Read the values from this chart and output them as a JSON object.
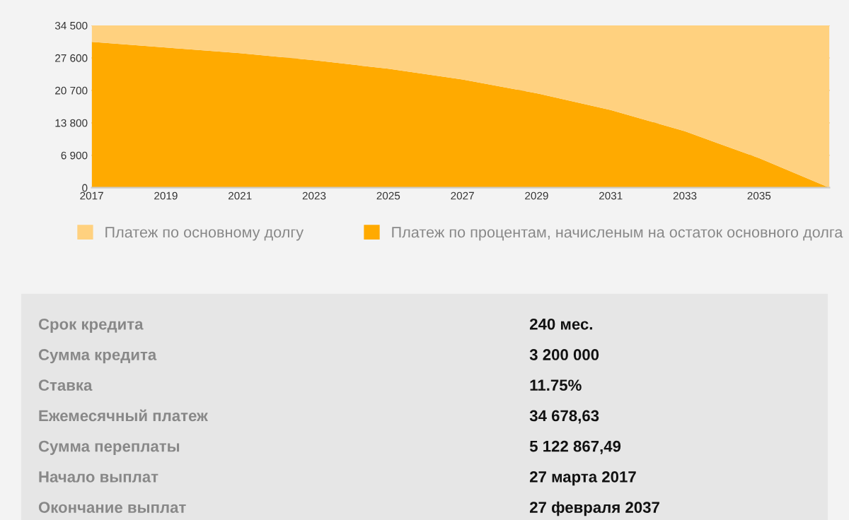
{
  "chart_data": [
    {
      "type": "area",
      "stacked": true,
      "x": [
        2017,
        2019,
        2021,
        2023,
        2025,
        2027,
        2029,
        2031,
        2033,
        2035,
        2036.9
      ],
      "series": [
        {
          "name": "Платеж по процентам, начисленым на остаток основного долга",
          "color": "#ffaa00",
          "values": [
            31000,
            29800,
            28600,
            27100,
            25300,
            23000,
            20100,
            16500,
            12000,
            6300,
            0
          ]
        },
        {
          "name": "Платеж по основному долгу",
          "color": "#ffd17f",
          "values": [
            3500,
            4700,
            5900,
            7400,
            9200,
            11500,
            14400,
            18000,
            22500,
            28200,
            34500
          ]
        }
      ],
      "xlim": [
        2017,
        2036.9
      ],
      "xticks": [
        2017,
        2019,
        2021,
        2023,
        2025,
        2027,
        2029,
        2031,
        2033,
        2035
      ],
      "ylim": [
        0,
        34500
      ],
      "yticks": [
        0,
        {
          "value": 6900,
          "label": "6 900"
        },
        {
          "value": 13800,
          "label": "13 800"
        },
        {
          "value": 20700,
          "label": "20 700"
        },
        {
          "value": 27600,
          "label": "27 600"
        },
        {
          "value": 34500,
          "label": "34 500"
        }
      ],
      "grid": "y",
      "legend": "bottom"
    },
    {
      "type": "other",
      "annotations": [
        "Срок кредита",
        "240 мес.",
        "Сумма кредита",
        "3 200 000",
        "Ставка",
        "11.75%",
        "Ежемесячный платеж",
        "34 678,63",
        "Сумма переплаты",
        "5 122 867,49",
        "Начало выплат",
        "27 марта 2017",
        "Окончание выплат",
        "27 февраля 2037"
      ]
    }
  ]
}
